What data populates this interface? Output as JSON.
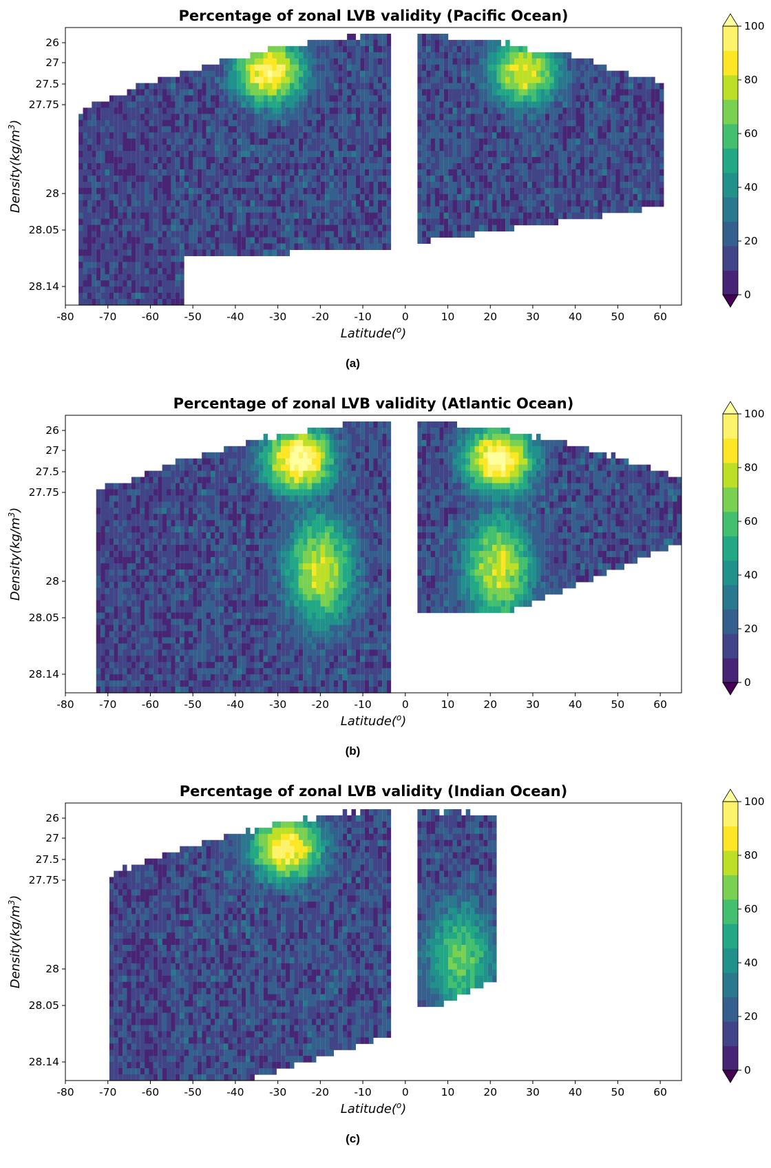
{
  "colors": {
    "palette": [
      "#440154",
      "#46327e",
      "#365c8d",
      "#277f8e",
      "#1fa187",
      "#4ac16d",
      "#a0da39",
      "#fde725"
    ],
    "levels": [
      "#440154",
      "#482475",
      "#414487",
      "#355f8d",
      "#2a788e",
      "#21918c",
      "#22a884",
      "#44bf70",
      "#7ad151",
      "#bddf26",
      "#fde725",
      "#fdf36b",
      "#ffff9e"
    ],
    "gap": "#ffffff"
  },
  "chart_data": [
    {
      "id": "a",
      "type": "heatmap",
      "title": "Percentage of zonal LVB validity (Pacific Ocean)",
      "xlabel": "Latitude(°)",
      "ylabel": "Density(kg/m³)",
      "xlim": [
        -80,
        65
      ],
      "x_ticks": [
        -80,
        -70,
        -60,
        -50,
        -40,
        -30,
        -20,
        -10,
        0,
        10,
        20,
        30,
        40,
        50,
        60
      ],
      "y_ticks": [
        "26",
        "27",
        "27.5",
        "27.75",
        "28",
        "28.05",
        "28.14"
      ],
      "colorbar_ticks": [
        0,
        20,
        40,
        60,
        80,
        100
      ],
      "colorbar_extend": "both",
      "caption": "(a)",
      "data_extent": {
        "lat_min": -77,
        "lat_max": 61,
        "gap_lat": [
          -3,
          3
        ]
      },
      "high_validity_regions": [
        {
          "lat_center": -32,
          "density_level": "26-27.75",
          "percent": 90
        },
        {
          "lat_center": 28,
          "density_level": "26-27.5",
          "percent": 80
        }
      ]
    },
    {
      "id": "b",
      "type": "heatmap",
      "title": "Percentage of zonal LVB validity (Atlantic Ocean)",
      "xlabel": "Latitude(°)",
      "ylabel": "Density(kg/m³)",
      "xlim": [
        -80,
        65
      ],
      "x_ticks": [
        -80,
        -70,
        -60,
        -50,
        -40,
        -30,
        -20,
        -10,
        0,
        10,
        20,
        30,
        40,
        50,
        60
      ],
      "y_ticks": [
        "26",
        "27",
        "27.5",
        "27.75",
        "28",
        "28.05",
        "28.14"
      ],
      "colorbar_ticks": [
        0,
        20,
        40,
        60,
        80,
        100
      ],
      "colorbar_extend": "both",
      "caption": "(b)",
      "data_extent": {
        "lat_min": -73,
        "lat_max": 65,
        "gap_lat": [
          -3,
          3
        ]
      },
      "high_validity_regions": [
        {
          "lat_center": -25,
          "density_level": "26-27.5",
          "percent": 95
        },
        {
          "lat_center": -20,
          "density_level": "27.75-28.14",
          "percent": 75
        },
        {
          "lat_center": 22,
          "density_level": "26-27",
          "percent": 95
        },
        {
          "lat_center": 22,
          "density_level": "27.75-28.05",
          "percent": 75
        }
      ]
    },
    {
      "id": "c",
      "type": "heatmap",
      "title": "Percentage of zonal LVB validity (Indian Ocean)",
      "xlabel": "Latitude(°)",
      "ylabel": "Density(kg/m³)",
      "xlim": [
        -80,
        65
      ],
      "x_ticks": [
        -80,
        -70,
        -60,
        -50,
        -40,
        -30,
        -20,
        -10,
        0,
        10,
        20,
        30,
        40,
        50,
        60
      ],
      "y_ticks": [
        "26",
        "27",
        "27.5",
        "27.75",
        "28",
        "28.05",
        "28.14"
      ],
      "colorbar_ticks": [
        0,
        20,
        40,
        60,
        80,
        100
      ],
      "colorbar_extend": "both",
      "caption": "(c)",
      "data_extent": {
        "lat_min": -70,
        "lat_max": 22,
        "gap_lat": [
          -3,
          3
        ]
      },
      "high_validity_regions": [
        {
          "lat_center": -28,
          "density_level": "26-27.5",
          "percent": 90
        },
        {
          "lat_center": 13,
          "density_level": "28",
          "percent": 60
        }
      ]
    }
  ]
}
